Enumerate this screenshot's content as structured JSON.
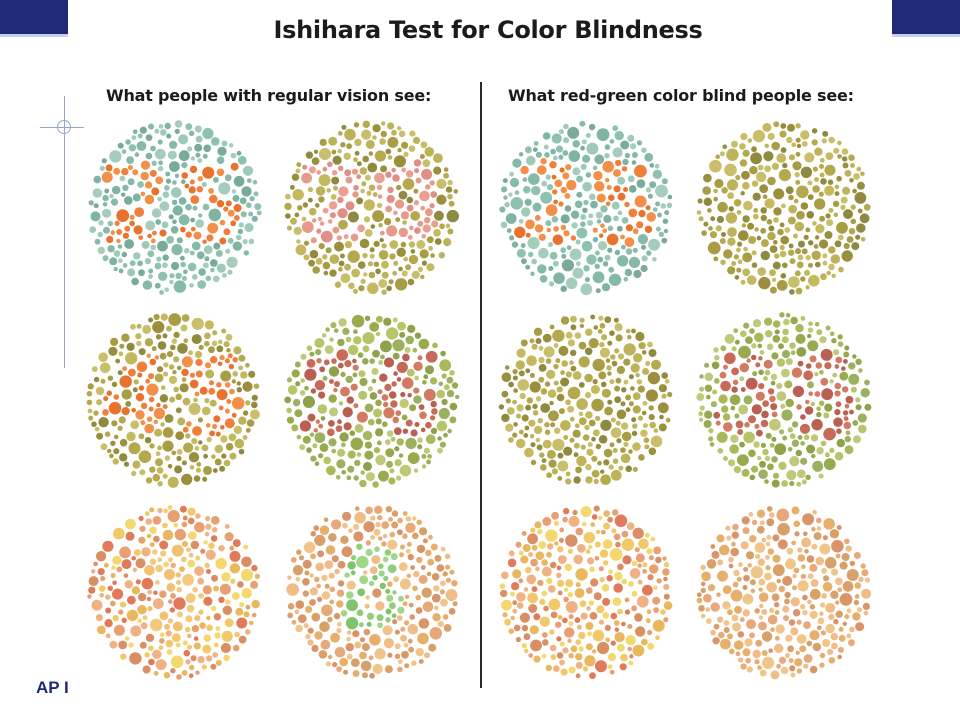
{
  "slide": {
    "footer_label": "AP I",
    "accent_color": "#1f2a78"
  },
  "figure": {
    "title": "Ishihara Test for Color Blindness",
    "left_heading": "What people with regular vision see:",
    "right_heading": "What red-green color blind people see:",
    "left_plates": [
      {
        "number": "25",
        "background": "teal",
        "figure_color": "orange"
      },
      {
        "number": "29",
        "background": "olive",
        "figure_color": "salmon"
      },
      {
        "number": "45",
        "background": "olive",
        "figure_color": "orange"
      },
      {
        "number": "56",
        "background": "green",
        "figure_color": "red"
      },
      {
        "number": "5",
        "background": "warm",
        "figure_color": "faint"
      },
      {
        "number": "8",
        "background": "peach",
        "figure_color": "green"
      }
    ],
    "right_plates": [
      {
        "number": "25",
        "background": "teal",
        "figure_color": "orange"
      },
      {
        "number": "",
        "background": "olive",
        "figure_color": "none"
      },
      {
        "number": "",
        "background": "olive",
        "figure_color": "none"
      },
      {
        "number": "56",
        "background": "green",
        "figure_color": "red"
      },
      {
        "number": "",
        "background": "warm",
        "figure_color": "none"
      },
      {
        "number": "",
        "background": "peach",
        "figure_color": "none"
      }
    ]
  }
}
